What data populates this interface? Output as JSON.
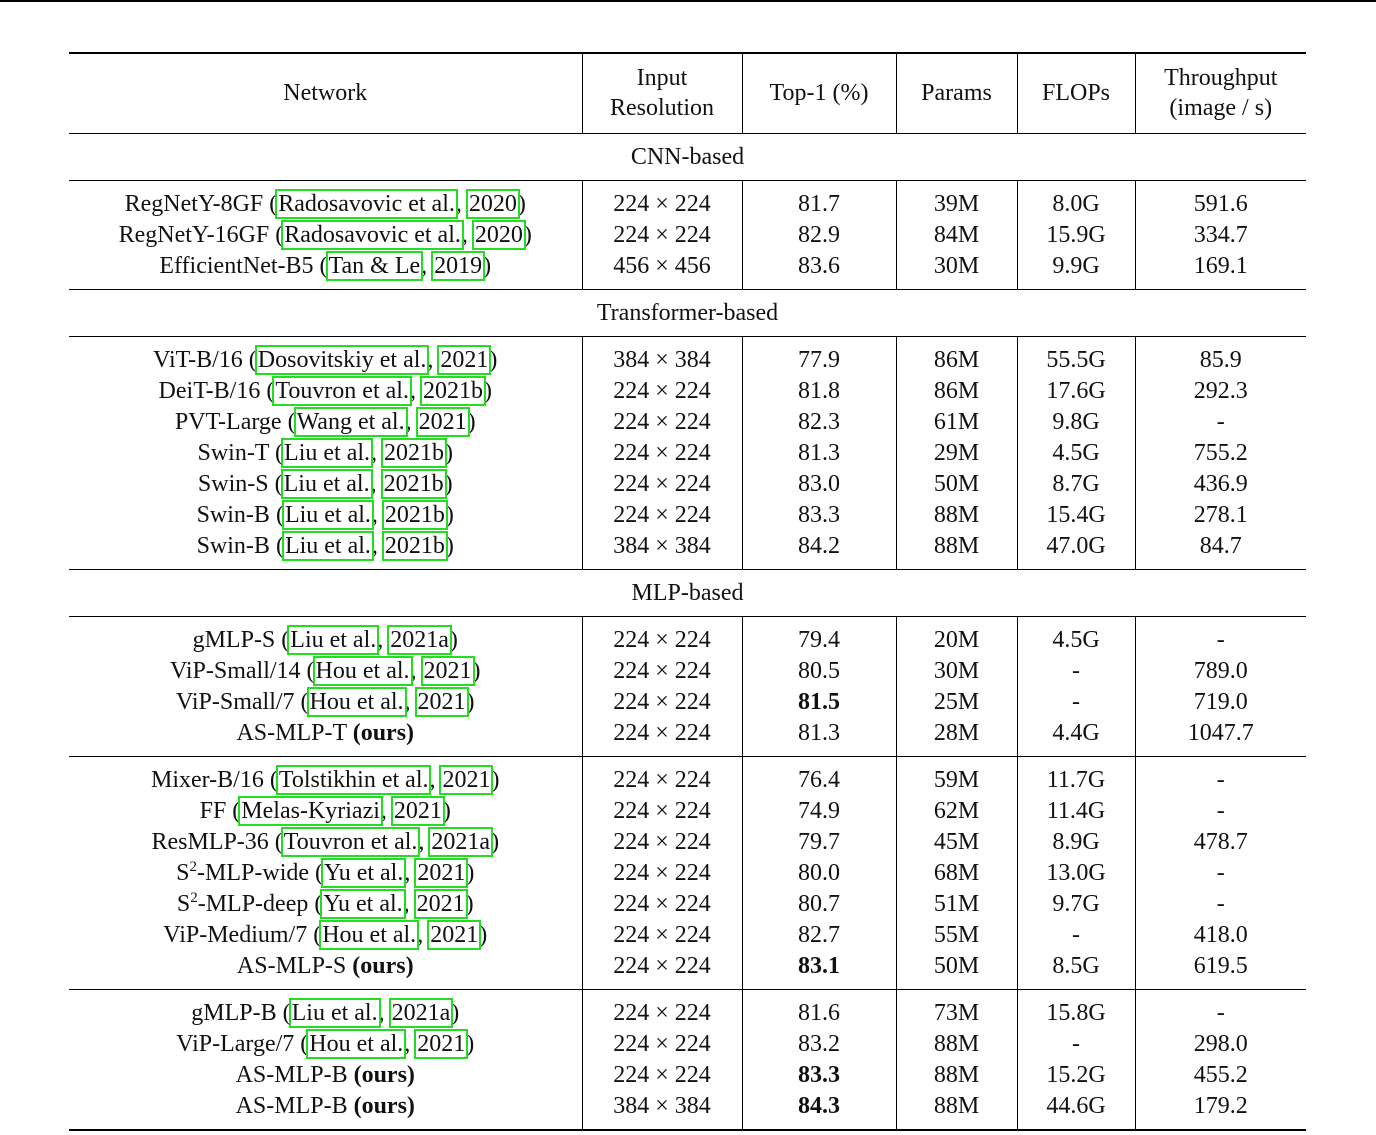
{
  "headers": {
    "network": "Network",
    "input_resolution_line1": "Input",
    "input_resolution_line2": "Resolution",
    "top1": "Top-1 (%)",
    "params": "Params",
    "flops": "FLOPs",
    "throughput_line1": "Throughput",
    "throughput_line2": "(image / s)"
  },
  "sections": [
    {
      "title": "CNN-based",
      "groups": [
        [
          {
            "name": "RegNetY-8GF",
            "cite_author": "Radosavovic et al.",
            "cite_year": "2020",
            "res": "224 × 224",
            "top1": "81.7",
            "params": "39M",
            "flops": "8.0G",
            "throughput": "591.6"
          },
          {
            "name": "RegNetY-16GF",
            "cite_author": "Radosavovic et al.",
            "cite_year": "2020",
            "res": "224 × 224",
            "top1": "82.9",
            "params": "84M",
            "flops": "15.9G",
            "throughput": "334.7"
          },
          {
            "name": "EfficientNet-B5",
            "cite_author": "Tan & Le",
            "cite_year": "2019",
            "res": "456 × 456",
            "top1": "83.6",
            "params": "30M",
            "flops": "9.9G",
            "throughput": "169.1"
          }
        ]
      ]
    },
    {
      "title": "Transformer-based",
      "groups": [
        [
          {
            "name": "ViT-B/16",
            "cite_author": "Dosovitskiy et al.",
            "cite_year": "2021",
            "res": "384 × 384",
            "top1": "77.9",
            "params": "86M",
            "flops": "55.5G",
            "throughput": "85.9"
          },
          {
            "name": "DeiT-B/16",
            "cite_author": "Touvron et al.",
            "cite_year": "2021b",
            "res": "224 × 224",
            "top1": "81.8",
            "params": "86M",
            "flops": "17.6G",
            "throughput": "292.3"
          },
          {
            "name": "PVT-Large",
            "cite_author": "Wang et al.",
            "cite_year": "2021",
            "res": "224 × 224",
            "top1": "82.3",
            "params": "61M",
            "flops": "9.8G",
            "throughput": "-"
          },
          {
            "name": "Swin-T",
            "cite_author": "Liu et al.",
            "cite_year": "2021b",
            "res": "224 × 224",
            "top1": "81.3",
            "params": "29M",
            "flops": "4.5G",
            "throughput": "755.2"
          },
          {
            "name": "Swin-S",
            "cite_author": "Liu et al.",
            "cite_year": "2021b",
            "res": "224 × 224",
            "top1": "83.0",
            "params": "50M",
            "flops": "8.7G",
            "throughput": "436.9"
          },
          {
            "name": "Swin-B",
            "cite_author": "Liu et al.",
            "cite_year": "2021b",
            "res": "224 × 224",
            "top1": "83.3",
            "params": "88M",
            "flops": "15.4G",
            "throughput": "278.1"
          },
          {
            "name": "Swin-B",
            "cite_author": "Liu et al.",
            "cite_year": "2021b",
            "res": "384 × 384",
            "top1": "84.2",
            "params": "88M",
            "flops": "47.0G",
            "throughput": "84.7"
          }
        ]
      ]
    },
    {
      "title": "MLP-based",
      "groups": [
        [
          {
            "name": "gMLP-S",
            "cite_author": "Liu et al.",
            "cite_year": "2021a",
            "res": "224 × 224",
            "top1": "79.4",
            "params": "20M",
            "flops": "4.5G",
            "throughput": "-"
          },
          {
            "name": "ViP-Small/14",
            "cite_author": "Hou et al.",
            "cite_year": "2021",
            "res": "224 × 224",
            "top1": "80.5",
            "params": "30M",
            "flops": "-",
            "throughput": "789.0"
          },
          {
            "name": "ViP-Small/7",
            "cite_author": "Hou et al.",
            "cite_year": "2021",
            "res": "224 × 224",
            "top1": "81.5",
            "top1_bold": true,
            "params": "25M",
            "flops": "-",
            "throughput": "719.0"
          },
          {
            "name": "AS-MLP-T",
            "ours": "(ours)",
            "res": "224 × 224",
            "top1": "81.3",
            "params": "28M",
            "flops": "4.4G",
            "throughput": "1047.7"
          }
        ],
        [
          {
            "name": "Mixer-B/16",
            "cite_author": "Tolstikhin et al.",
            "cite_year": "2021",
            "res": "224 × 224",
            "top1": "76.4",
            "params": "59M",
            "flops": "11.7G",
            "throughput": "-"
          },
          {
            "name": "FF",
            "cite_author": "Melas-Kyriazi",
            "cite_year": "2021",
            "res": "224 × 224",
            "top1": "74.9",
            "params": "62M",
            "flops": "11.4G",
            "throughput": "-"
          },
          {
            "name": "ResMLP-36",
            "cite_author": "Touvron et al.",
            "cite_year": "2021a",
            "res": "224 × 224",
            "top1": "79.7",
            "params": "45M",
            "flops": "8.9G",
            "throughput": "478.7"
          },
          {
            "name": "S",
            "name_sup": "2",
            "name_rest": "-MLP-wide",
            "cite_author": "Yu et al.",
            "cite_year": "2021",
            "res": "224 × 224",
            "top1": "80.0",
            "params": "68M",
            "flops": "13.0G",
            "throughput": "-"
          },
          {
            "name": "S",
            "name_sup": "2",
            "name_rest": "-MLP-deep",
            "cite_author": "Yu et al.",
            "cite_year": "2021",
            "res": "224 × 224",
            "top1": "80.7",
            "params": "51M",
            "flops": "9.7G",
            "throughput": "-"
          },
          {
            "name": "ViP-Medium/7",
            "cite_author": "Hou et al.",
            "cite_year": "2021",
            "res": "224 × 224",
            "top1": "82.7",
            "params": "55M",
            "flops": "-",
            "throughput": "418.0"
          },
          {
            "name": "AS-MLP-S",
            "ours": "(ours)",
            "res": "224 × 224",
            "top1": "83.1",
            "top1_bold": true,
            "params": "50M",
            "flops": "8.5G",
            "throughput": "619.5"
          }
        ],
        [
          {
            "name": "gMLP-B",
            "cite_author": "Liu et al.",
            "cite_year": "2021a",
            "res": "224 × 224",
            "top1": "81.6",
            "params": "73M",
            "flops": "15.8G",
            "throughput": "-"
          },
          {
            "name": "ViP-Large/7",
            "cite_author": "Hou et al.",
            "cite_year": "2021",
            "res": "224 × 224",
            "top1": "83.2",
            "params": "88M",
            "flops": "-",
            "throughput": "298.0"
          },
          {
            "name": "AS-MLP-B",
            "ours": "(ours)",
            "res": "224 × 224",
            "top1": "83.3",
            "top1_bold": true,
            "params": "88M",
            "flops": "15.2G",
            "throughput": "455.2"
          },
          {
            "name": "AS-MLP-B",
            "ours": "(ours)",
            "res": "384 × 384",
            "top1": "84.3",
            "top1_bold": true,
            "params": "88M",
            "flops": "44.6G",
            "throughput": "179.2"
          }
        ]
      ]
    }
  ]
}
